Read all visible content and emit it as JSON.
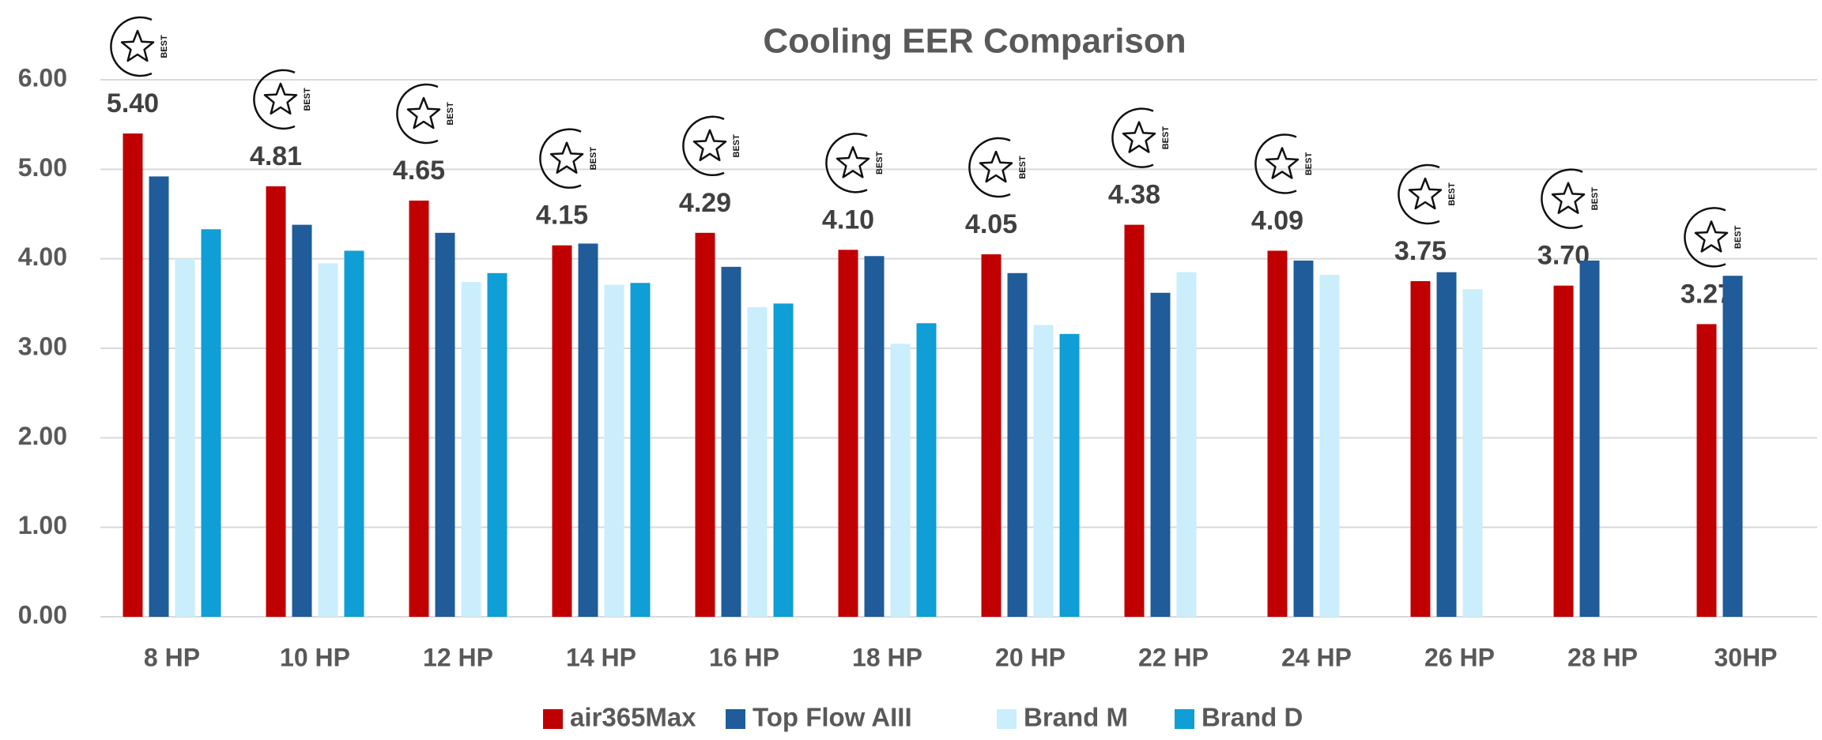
{
  "chart_data": {
    "type": "bar",
    "title": "Cooling EER Comparison",
    "badge_label": "BEST",
    "categories": [
      "8 HP",
      "10 HP",
      "12 HP",
      "14 HP",
      "16 HP",
      "18 HP",
      "20 HP",
      "22 HP",
      "24 HP",
      "26 HP",
      "28 HP",
      "30HP"
    ],
    "series": [
      {
        "name": "air365Max",
        "color": "#c00000",
        "values": [
          5.4,
          4.81,
          4.65,
          4.15,
          4.29,
          4.1,
          4.05,
          4.38,
          4.09,
          3.75,
          3.7,
          3.27
        ],
        "value_labels": [
          "5.40",
          "4.81",
          "4.65",
          "4.15",
          "4.29",
          "4.10",
          "4.05",
          "4.38",
          "4.09",
          "3.75",
          "3.70",
          "3.27"
        ]
      },
      {
        "name": "Top Flow AIII",
        "color": "#1f5c99",
        "values": [
          4.92,
          4.38,
          4.29,
          4.17,
          3.91,
          4.03,
          3.84,
          3.62,
          3.98,
          3.85,
          3.98,
          3.81
        ]
      },
      {
        "name": "Brand M",
        "color": "#caeefb",
        "values": [
          4.0,
          3.95,
          3.74,
          3.71,
          3.46,
          3.05,
          3.26,
          3.85,
          3.82,
          3.66,
          null,
          null
        ]
      },
      {
        "name": "Brand D",
        "color": "#0f9ed5",
        "values": [
          4.33,
          4.09,
          3.84,
          3.73,
          3.5,
          3.28,
          3.16,
          null,
          null,
          null,
          null,
          null
        ]
      }
    ],
    "ylim": [
      0,
      6
    ],
    "yticks": [
      {
        "value": 0,
        "label": "0.00"
      },
      {
        "value": 1,
        "label": "1.00"
      },
      {
        "value": 2,
        "label": "2.00"
      },
      {
        "value": 3,
        "label": "3.00"
      },
      {
        "value": 4,
        "label": "4.00"
      },
      {
        "value": 5,
        "label": "5.00"
      },
      {
        "value": 6,
        "label": "6.00"
      }
    ],
    "grid": true,
    "legend": "bottom"
  }
}
